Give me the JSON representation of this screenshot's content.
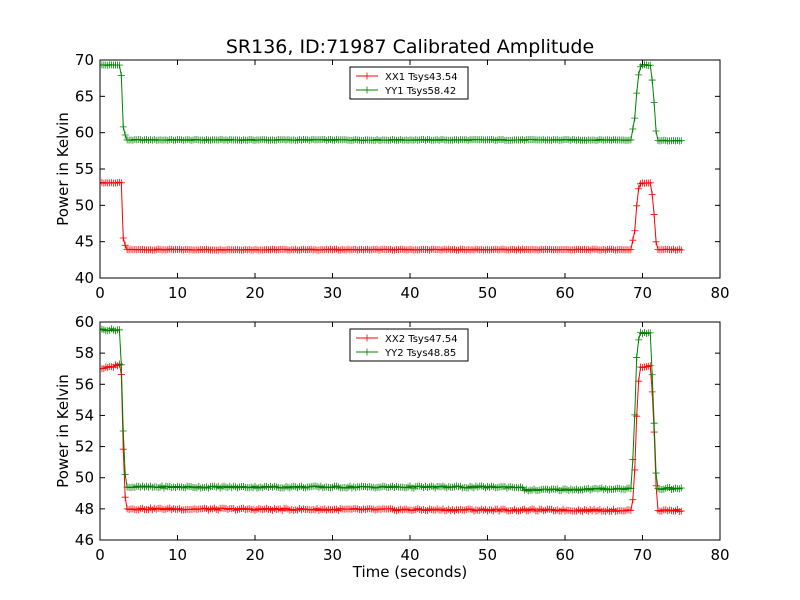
{
  "title": "SR136, ID:71987 Calibrated Amplitude",
  "colors": {
    "xx": "#ff0000",
    "yy": "#008000",
    "axis": "#000000",
    "background": "#ffffff"
  },
  "chart_data": [
    {
      "type": "line",
      "title": "SR136, ID:71987 Calibrated Amplitude",
      "xlabel": "",
      "ylabel": "Power in Kelvin",
      "xlim": [
        0,
        80
      ],
      "ylim": [
        40,
        70
      ],
      "xticks": [
        "0",
        "10",
        "20",
        "30",
        "40",
        "50",
        "60",
        "70",
        "80"
      ],
      "yticks": [
        "40",
        "45",
        "50",
        "55",
        "60",
        "65",
        "70"
      ],
      "grid": false,
      "legend": "top-center",
      "marker": "plus",
      "series": [
        {
          "name": "XX1 Tsys43.54",
          "color": "#ff0000",
          "base": 43.8,
          "high": 53.0,
          "start_high": 53.1,
          "segments": [
            [
              0,
              53.1
            ],
            [
              2.8,
              53.1
            ],
            [
              3.0,
              45.5
            ],
            [
              3.4,
              43.9
            ],
            [
              68.5,
              43.9
            ],
            [
              69.0,
              46.5
            ],
            [
              69.4,
              52.0
            ],
            [
              69.8,
              53.1
            ],
            [
              71.0,
              53.1
            ],
            [
              71.4,
              50.5
            ],
            [
              71.7,
              45.2
            ],
            [
              72.0,
              43.9
            ],
            [
              75.3,
              43.9
            ]
          ]
        },
        {
          "name": "YY1 Tsys58.42",
          "color": "#008000",
          "base": 58.9,
          "high": 69.2,
          "start_high": 69.3,
          "segments": [
            [
              0,
              69.3
            ],
            [
              2.7,
              69.3
            ],
            [
              3.0,
              60.8
            ],
            [
              3.4,
              59.0
            ],
            [
              68.5,
              59.0
            ],
            [
              69.0,
              62.0
            ],
            [
              69.4,
              67.5
            ],
            [
              69.8,
              69.3
            ],
            [
              71.0,
              69.3
            ],
            [
              71.4,
              66.0
            ],
            [
              71.7,
              60.5
            ],
            [
              72.0,
              58.9
            ],
            [
              75.3,
              58.9
            ]
          ]
        }
      ]
    },
    {
      "type": "line",
      "title": "",
      "xlabel": "Time (seconds)",
      "ylabel": "Power in Kelvin",
      "xlim": [
        0,
        80
      ],
      "ylim": [
        46,
        60
      ],
      "xticks": [
        "0",
        "10",
        "20",
        "30",
        "40",
        "50",
        "60",
        "70",
        "80"
      ],
      "yticks": [
        "46",
        "48",
        "50",
        "52",
        "54",
        "56",
        "58",
        "60"
      ],
      "grid": false,
      "legend": "top-center",
      "marker": "plus",
      "series": [
        {
          "name": "XX2 Tsys47.54",
          "color": "#ff0000",
          "segments": [
            [
              0,
              57.0
            ],
            [
              1.5,
              57.1
            ],
            [
              2.5,
              57.3
            ],
            [
              2.8,
              56.5
            ],
            [
              3.1,
              49.5
            ],
            [
              3.4,
              48.0
            ],
            [
              68.5,
              47.9
            ],
            [
              68.9,
              49.0
            ],
            [
              69.2,
              53.5
            ],
            [
              69.6,
              57.1
            ],
            [
              71.0,
              57.2
            ],
            [
              71.4,
              54.5
            ],
            [
              71.7,
              49.8
            ],
            [
              72.0,
              47.9
            ],
            [
              75.3,
              47.9
            ]
          ]
        },
        {
          "name": "YY2 Tsys48.85",
          "color": "#008000",
          "segments": [
            [
              0,
              59.5
            ],
            [
              2.6,
              59.5
            ],
            [
              2.9,
              55.0
            ],
            [
              3.1,
              51.0
            ],
            [
              3.4,
              49.4
            ],
            [
              53.0,
              49.4
            ],
            [
              54.0,
              49.4
            ],
            [
              55.0,
              49.2
            ],
            [
              68.5,
              49.3
            ],
            [
              68.9,
              52.3
            ],
            [
              69.2,
              57.5
            ],
            [
              69.6,
              59.3
            ],
            [
              71.0,
              59.3
            ],
            [
              71.4,
              55.0
            ],
            [
              71.7,
              50.5
            ],
            [
              72.0,
              49.3
            ],
            [
              75.3,
              49.3
            ]
          ]
        }
      ]
    }
  ]
}
